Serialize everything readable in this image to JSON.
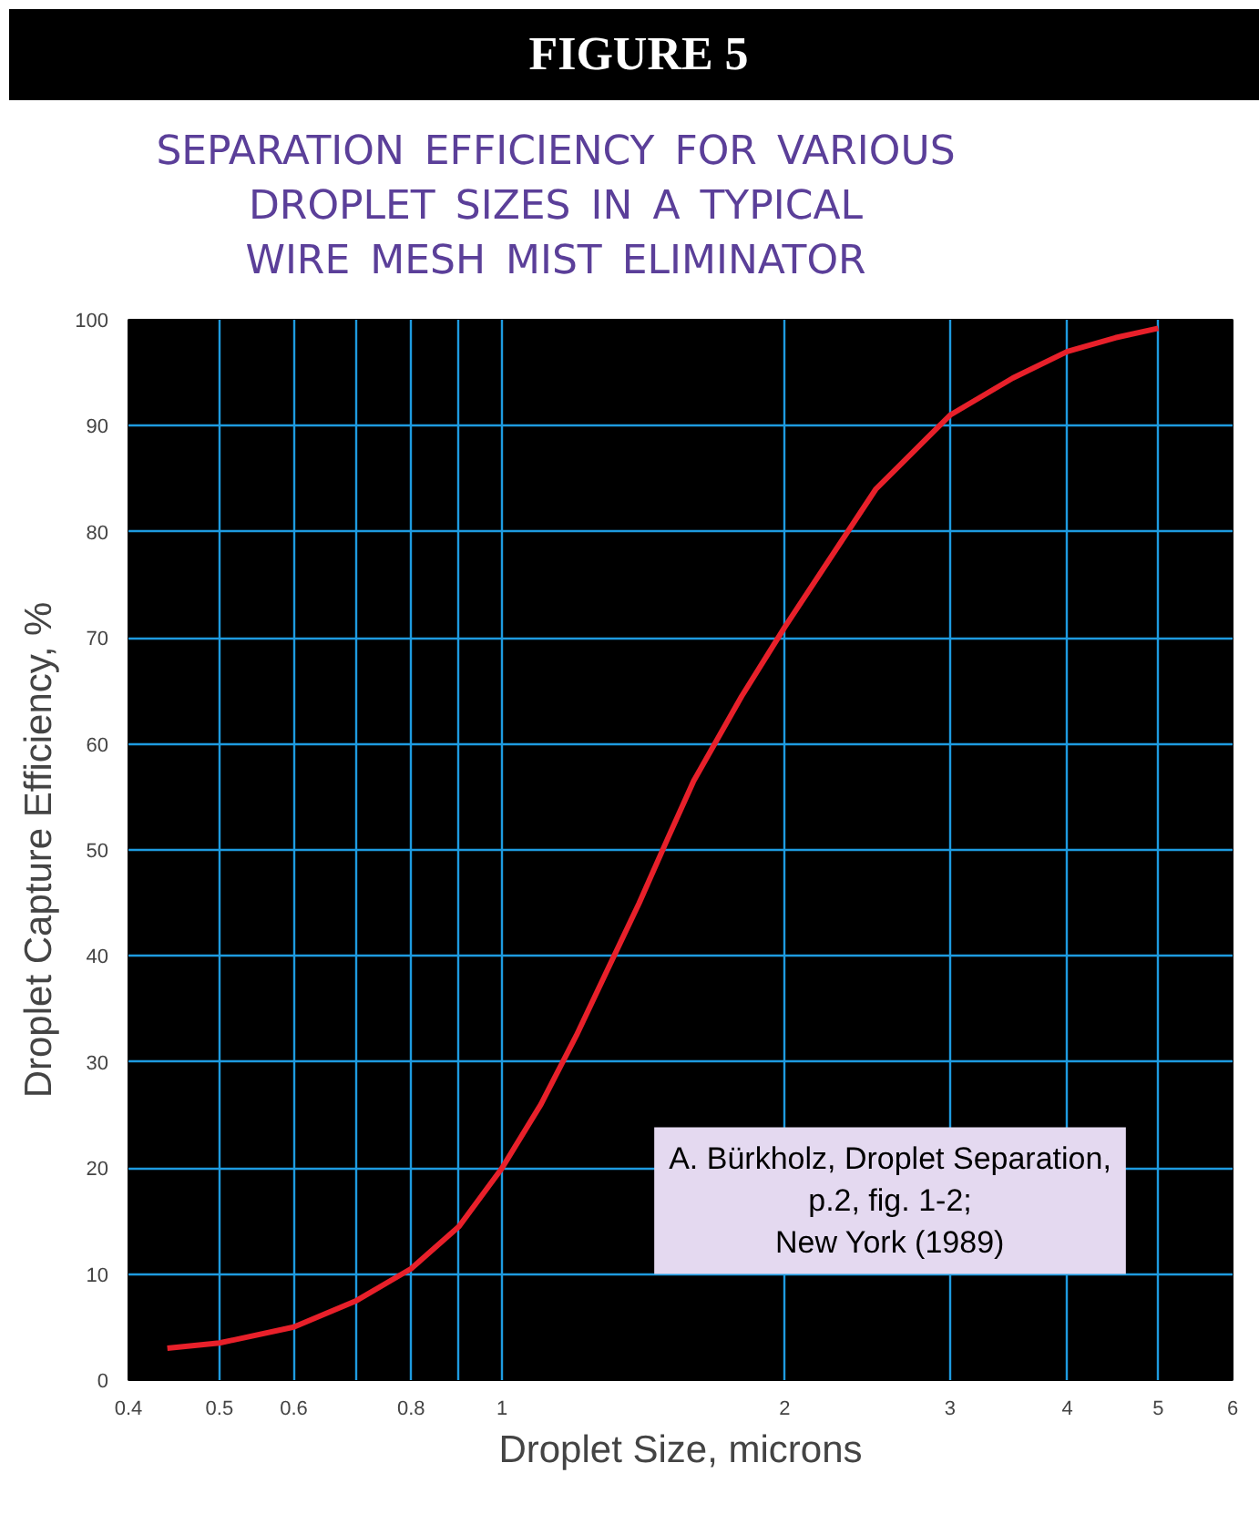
{
  "chart_data": {
    "type": "line",
    "title": "FIGURE 5",
    "subtitle": "SEPARATION EFFICIENCY FOR VARIOUS\nDROPLET SIZES IN A TYPICAL\nWIRE MESH MIST ELIMINATOR",
    "xlabel": "Droplet Size, microns",
    "ylabel": "Droplet Capture Efficiency, %",
    "log": "x",
    "xlim": [
      0.4,
      6
    ],
    "ylim": [
      0,
      100
    ],
    "xticks": [
      0.4,
      0.5,
      0.6,
      {
        "value": 0.7,
        "label": null
      },
      0.8,
      {
        "value": 0.9,
        "label": null
      },
      1,
      2,
      3,
      4,
      5,
      6
    ],
    "yticks": [
      0,
      10,
      20,
      30,
      40,
      50,
      60,
      70,
      80,
      90,
      100
    ],
    "grid": true,
    "marker": "none",
    "line_style": "solid",
    "x": [
      0.44,
      0.5,
      0.6,
      0.7,
      0.8,
      0.9,
      1.0,
      1.1,
      1.2,
      1.3,
      1.4,
      1.5,
      1.6,
      1.8,
      2.0,
      2.5,
      3.0,
      3.5,
      4.0,
      4.5,
      5.0
    ],
    "series": [
      {
        "color": "#e8202a",
        "values": [
          3.0,
          3.5,
          5.0,
          7.5,
          10.5,
          14.5,
          20,
          26,
          32.5,
          39,
          45,
          51,
          56.5,
          64.5,
          71,
          84,
          91,
          94.5,
          97,
          98.3,
          99.2
        ]
      }
    ],
    "annotations": [
      "A. Bürkholz, Droplet Separation,\np.2, fig. 1-2;\nNew York (1989)"
    ]
  }
}
